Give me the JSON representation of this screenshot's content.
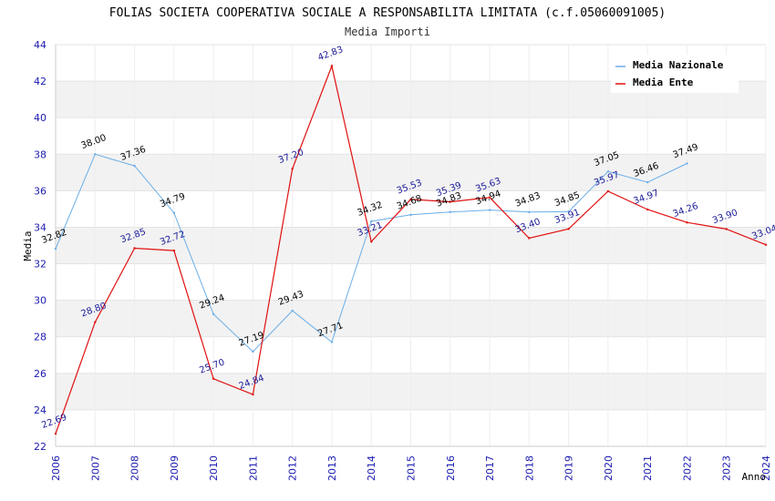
{
  "chart_data": {
    "type": "line",
    "title": "FOLIAS SOCIETA COOPERATIVA SOCIALE A RESPONSABILITA LIMITATA (c.f.05060091005)",
    "subtitle": "Media Importi",
    "xlabel": "Anno",
    "ylabel": "Media",
    "ylim": [
      22,
      44
    ],
    "yticks": [
      22,
      24,
      26,
      28,
      30,
      32,
      34,
      36,
      38,
      40,
      42,
      44
    ],
    "x": [
      2006,
      2007,
      2008,
      2009,
      2010,
      2011,
      2012,
      2013,
      2014,
      2015,
      2016,
      2017,
      2018,
      2019,
      2020,
      2021,
      2022,
      2023,
      2024
    ],
    "legend_position": "top-right",
    "series": [
      {
        "name": "Media Nazionale",
        "color": "#6aaee8",
        "values": [
          32.82,
          38.0,
          37.36,
          34.79,
          29.24,
          27.19,
          29.43,
          27.71,
          34.32,
          34.68,
          34.83,
          34.94,
          34.83,
          34.85,
          37.05,
          36.46,
          37.49,
          null,
          null
        ],
        "labels": [
          "32.82",
          "38.00",
          "37.36",
          "34.79",
          "29.24",
          "27.19",
          "29.43",
          "27.71",
          "34.32",
          "34.68",
          "34.83",
          "34.94",
          "34.83",
          "34.85",
          "37.05",
          "36.46",
          "37.49",
          null,
          null
        ]
      },
      {
        "name": "Media Ente",
        "color": "#e01010",
        "values": [
          22.69,
          28.8,
          32.85,
          32.72,
          25.7,
          24.84,
          37.2,
          42.83,
          33.21,
          35.53,
          35.39,
          35.63,
          33.4,
          33.91,
          35.97,
          34.97,
          34.26,
          33.9,
          33.04
        ],
        "labels": [
          "22.69",
          "28.80",
          "32.85",
          "32.72",
          "25.70",
          "24.84",
          "37.20",
          "42.83",
          "33.21",
          "35.53",
          "35.39",
          "35.63",
          "33.40",
          "33.91",
          "35.97",
          "34.97",
          "34.26",
          "33.90",
          "33.04"
        ]
      }
    ]
  }
}
